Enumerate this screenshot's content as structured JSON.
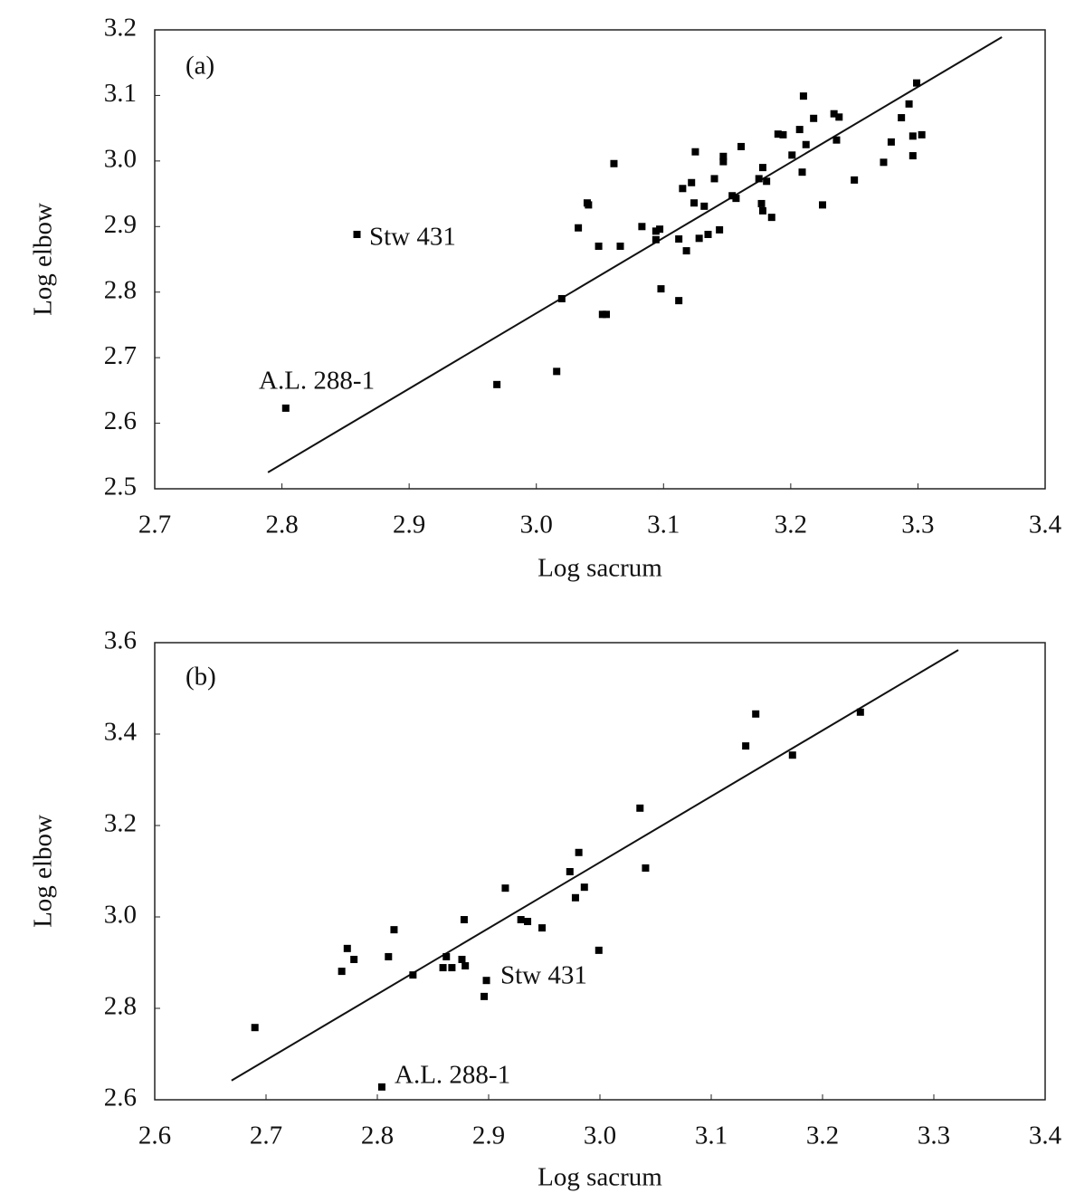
{
  "chart_data": [
    {
      "type": "scatter",
      "xlabel": "Log sacrum",
      "ylabel": "Log elbow",
      "annotations": [
        "(a)",
        "Stw 431",
        "A.L. 288-1"
      ],
      "xlim": [
        2.7,
        3.4
      ],
      "ylim": [
        2.5,
        3.2
      ],
      "xticks": [
        2.7,
        2.8,
        2.9,
        {
          "value": 3.0,
          "label": "3.0"
        },
        3.1,
        3.2,
        3.3,
        3.4
      ],
      "yticks": [
        2.5,
        2.6,
        2.7,
        2.8,
        2.9,
        {
          "value": 3.0,
          "label": "3.0"
        },
        3.1,
        3.2
      ],
      "series": [
        {
          "color": "#000000",
          "x": [
            2.803,
            2.859,
            2.969,
            3.016,
            3.02,
            3.033,
            3.04,
            3.041,
            3.049,
            3.052,
            3.055,
            3.061,
            3.066,
            3.083,
            3.094,
            3.094,
            3.097,
            3.098,
            3.112,
            3.112,
            3.115,
            3.118,
            3.122,
            3.124,
            3.125,
            3.128,
            3.132,
            3.135,
            3.14,
            3.144,
            3.147,
            3.147,
            3.154,
            3.157,
            3.161,
            3.175,
            3.177,
            3.178,
            3.178,
            3.181,
            3.185,
            3.19,
            3.194,
            3.201,
            3.207,
            3.209,
            3.21,
            3.212,
            3.218,
            3.225,
            3.234,
            3.236,
            3.238,
            3.25,
            3.273,
            3.279,
            3.287,
            3.293,
            3.296,
            3.296,
            3.299,
            3.303
          ],
          "values": [
            2.623,
            2.888,
            2.659,
            2.679,
            2.79,
            2.898,
            2.936,
            2.933,
            2.87,
            2.766,
            2.766,
            2.996,
            2.87,
            2.9,
            2.893,
            2.88,
            2.896,
            2.805,
            2.881,
            2.787,
            2.958,
            2.863,
            2.967,
            2.936,
            3.014,
            2.882,
            2.931,
            2.888,
            2.973,
            2.895,
            2.999,
            3.007,
            2.947,
            2.943,
            3.022,
            2.973,
            2.935,
            2.99,
            2.924,
            2.969,
            2.914,
            3.041,
            3.04,
            3.009,
            3.048,
            2.983,
            3.099,
            3.025,
            3.065,
            2.933,
            3.072,
            3.032,
            3.067,
            2.971,
            2.998,
            3.029,
            3.066,
            3.087,
            3.038,
            3.008,
            3.119,
            3.04
          ]
        }
      ],
      "fit": {
        "x": [
          2.789,
          3.366
        ],
        "y": [
          2.525,
          3.189
        ]
      }
    },
    {
      "type": "scatter",
      "xlabel": "Log sacrum",
      "ylabel": "Log elbow",
      "annotations": [
        "(b)",
        "Stw 431",
        "A.L. 288-1"
      ],
      "xlim": [
        2.6,
        3.4
      ],
      "ylim": [
        2.6,
        3.6
      ],
      "xticks": [
        2.6,
        2.7,
        2.8,
        2.9,
        {
          "value": 3.0,
          "label": "3.0"
        },
        3.1,
        3.2,
        3.3,
        3.4
      ],
      "yticks": [
        2.6,
        2.8,
        {
          "value": 3.0,
          "label": "3.0"
        },
        3.2,
        3.4,
        3.6
      ],
      "series": [
        {
          "color": "#000000",
          "x": [
            2.69,
            2.768,
            2.773,
            2.779,
            2.81,
            2.815,
            2.832,
            2.804,
            2.859,
            2.862,
            2.867,
            2.876,
            2.878,
            2.879,
            2.896,
            2.898,
            2.915,
            2.929,
            2.935,
            2.948,
            2.973,
            2.978,
            2.981,
            2.986,
            2.999,
            3.036,
            3.041,
            3.131,
            3.14,
            3.173,
            3.234
          ],
          "values": [
            2.758,
            2.881,
            2.931,
            2.907,
            2.913,
            2.972,
            2.873,
            2.628,
            2.889,
            2.913,
            2.889,
            2.907,
            2.994,
            2.893,
            2.826,
            2.861,
            3.063,
            2.994,
            2.99,
            2.976,
            3.099,
            3.042,
            3.141,
            3.065,
            2.927,
            3.238,
            3.107,
            3.374,
            3.444,
            3.354,
            3.448
          ]
        }
      ],
      "fit": {
        "x": [
          2.669,
          3.322
        ],
        "y": [
          2.642,
          3.584
        ]
      }
    }
  ]
}
